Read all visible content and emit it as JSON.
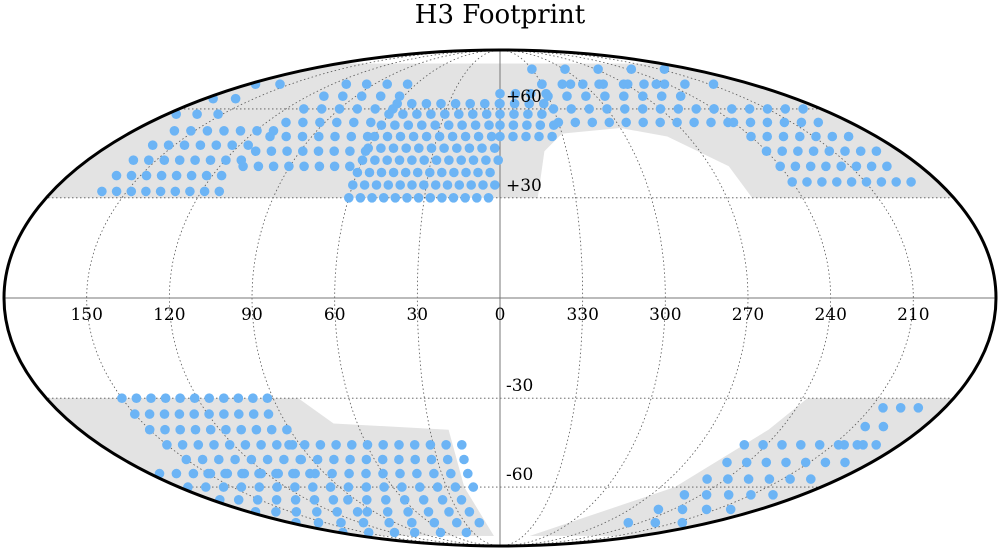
{
  "chart_data": {
    "type": "scatter",
    "title": "H3 Footprint",
    "projection": "Mollweide",
    "xlabel": "",
    "ylabel": "",
    "lon_tick_labels": [
      "150",
      "120",
      "90",
      "60",
      "30",
      "0",
      "330",
      "300",
      "270",
      "240",
      "210"
    ],
    "lat_tick_labels": [
      "+60",
      "+30",
      "-30",
      "-60"
    ],
    "grid": true,
    "marker_color": "#6cb4f5",
    "shaded_region_color": "#e3e3e3",
    "series": [
      {
        "fields": [
          {
            "ra": [
              330,
              190
            ],
            "dec": [
              70,
              82
            ],
            "step": 7
          },
          {
            "ra": [
              175,
              150
            ],
            "dec": [
              58,
              70
            ],
            "step": 6
          },
          {
            "ra": [
              160,
              110
            ],
            "dec": [
              32,
              55
            ],
            "step": 5
          },
          {
            "ra": [
              110,
              60
            ],
            "dec": [
              40,
              72
            ],
            "step": 5
          },
          {
            "ra": [
              60,
              0
            ],
            "dec": [
              30,
              62
            ],
            "step": 4
          },
          {
            "ra": [
              0,
              330
            ],
            "dec": [
              50,
              68
            ],
            "step": 4
          },
          {
            "ra": [
              330,
              240
            ],
            "dec": [
              55,
              70
            ],
            "step": 5
          },
          {
            "ra": [
              240,
              190
            ],
            "dec": [
              35,
              60
            ],
            "step": 5
          },
          {
            "ra": [
              150,
              90
            ],
            "dec": [
              -55,
              -28
            ],
            "step": 5
          },
          {
            "ra": [
              95,
              15
            ],
            "dec": [
              -80,
              -45
            ],
            "step": 5
          },
          {
            "ra": [
              175,
              100
            ],
            "dec": [
              -80,
              -55
            ],
            "step": 5
          },
          {
            "ra": [
              250,
              185
            ],
            "dec": [
              -75,
              -40
            ],
            "step": 6
          },
          {
            "ra": [
              205,
              190
            ],
            "dec": [
              -45,
              -30
            ],
            "step": 6
          }
        ]
      }
    ]
  }
}
